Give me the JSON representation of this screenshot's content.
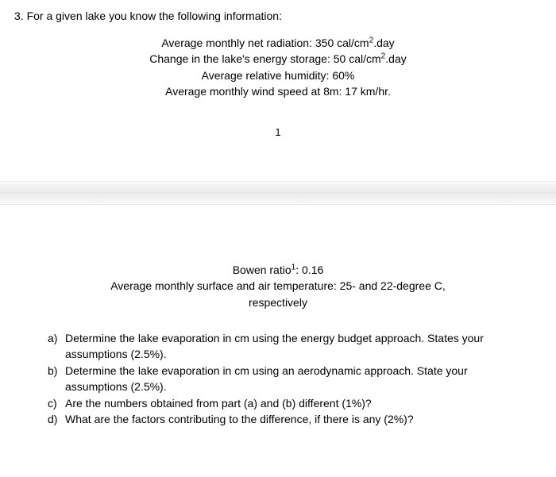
{
  "question": {
    "number": "3.",
    "prompt": "For a given lake you know the following information:"
  },
  "given_upper": {
    "line1_pre": "Average monthly net radiation: 350 cal/cm",
    "line1_post": ".day",
    "line2_pre": "Change in the lake's energy storage: 50 cal/cm",
    "line2_post": ".day",
    "line3": "Average relative humidity: 60%",
    "line4": "Average monthly wind speed at 8m: 17 km/hr."
  },
  "page_num": "1",
  "given_lower": {
    "line1_pre": "Bowen ratio",
    "line1_post": ": 0.16",
    "line2": "Average monthly surface and air temperature: 25- and 22-degree C,",
    "line3": "respectively"
  },
  "subs": {
    "a": {
      "letter": "a)",
      "text": "Determine the lake evaporation in cm using the energy budget approach. States your assumptions (2.5%)."
    },
    "b": {
      "letter": "b)",
      "text": "Determine the lake evaporation in cm using an aerodynamic approach. State your assumptions (2.5%)."
    },
    "c": {
      "letter": "c)",
      "text": "Are the numbers obtained from part (a) and (b) different (1%)?"
    },
    "d": {
      "letter": "d)",
      "text": "What are the factors contributing to the difference, if there is any (2%)?"
    }
  },
  "sup2": "2",
  "sup1": "1"
}
